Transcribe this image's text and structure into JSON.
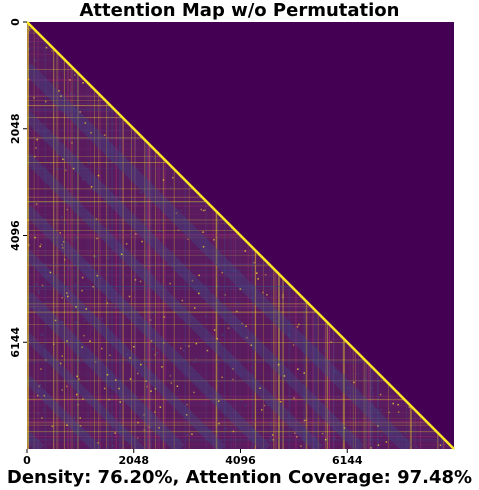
{
  "chart_data": {
    "type": "heatmap",
    "title": "Attention Map w/o Permutation",
    "caption": "Density: 76.20%, Attention Coverage: 97.48%",
    "matrix_size": 8192,
    "mask": "causal-lower-triangular",
    "colormap": "viridis",
    "x_ticks": [
      0,
      2048,
      4096,
      6144
    ],
    "y_ticks": [
      0,
      2048,
      4096,
      6144
    ],
    "x_tick_labels": [
      "0",
      "2048",
      "4096",
      "6144"
    ],
    "y_tick_labels": [
      "0",
      "2048",
      "4096",
      "6144"
    ],
    "density_percent": 76.2,
    "attention_coverage_percent": 97.48,
    "colors": {
      "masked": "#440154",
      "low": "#481f70",
      "mid": "#3b528b",
      "high": "#fde725",
      "bg_attended": "#5a1a5e"
    }
  }
}
